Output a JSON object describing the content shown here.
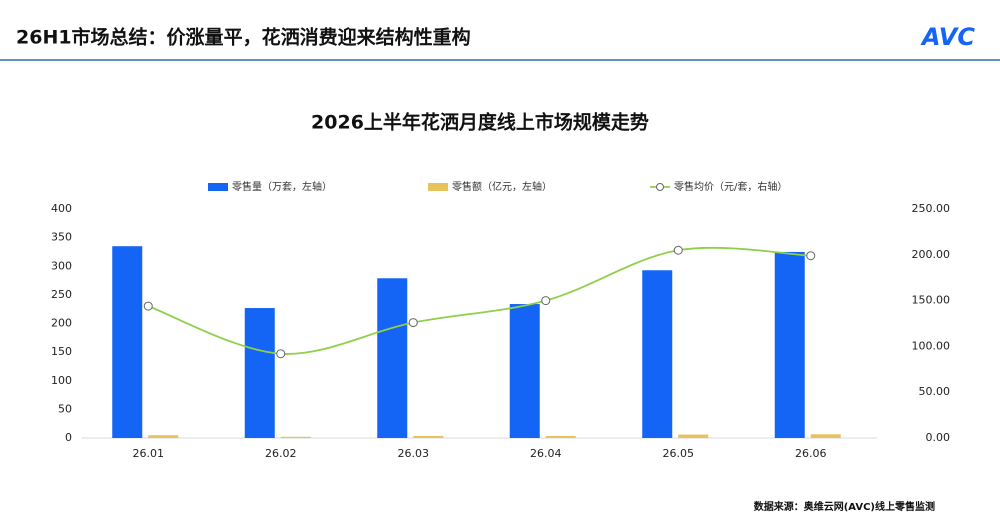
{
  "header": {
    "title": "26H1市场总结：价涨量平，花洒消费迎来结构性重构",
    "logo": "AVC"
  },
  "chart_data": {
    "type": "bar",
    "title": "2026上半年花洒月度线上市场规模走势",
    "categories": [
      "26.01",
      "26.02",
      "26.03",
      "26.04",
      "26.05",
      "26.06"
    ],
    "series": [
      {
        "name": "零售量（万套，左轴）",
        "type": "bar",
        "color": "#1464f5",
        "values": [
          335,
          227,
          279,
          234,
          293,
          325
        ]
      },
      {
        "name": "零售额（亿元，左轴）",
        "type": "bar",
        "color": "#e8c25a",
        "values": [
          4.9,
          2.1,
          3.5,
          3.5,
          6.0,
          6.5
        ]
      },
      {
        "name": "零售均价（元/套，右轴）",
        "type": "line",
        "axis": "y2",
        "color": "#8fcf4a",
        "values": [
          144,
          92,
          126,
          150,
          205,
          199
        ]
      }
    ],
    "ylim": [
      0,
      400
    ],
    "yticks": [
      0,
      50,
      100,
      150,
      200,
      250,
      300,
      350,
      400
    ],
    "y2lim": [
      0,
      250
    ],
    "y2ticks": [
      {
        "value": 0,
        "label": "0.00"
      },
      {
        "value": 50,
        "label": "50.00"
      },
      {
        "value": 100,
        "label": "100.00"
      },
      {
        "value": 150,
        "label": "150.00"
      },
      {
        "value": 200,
        "label": "200.00"
      },
      {
        "value": 250,
        "label": "250.00"
      }
    ],
    "source": "数据来源：奥维云网(AVC)线上零售监测"
  }
}
